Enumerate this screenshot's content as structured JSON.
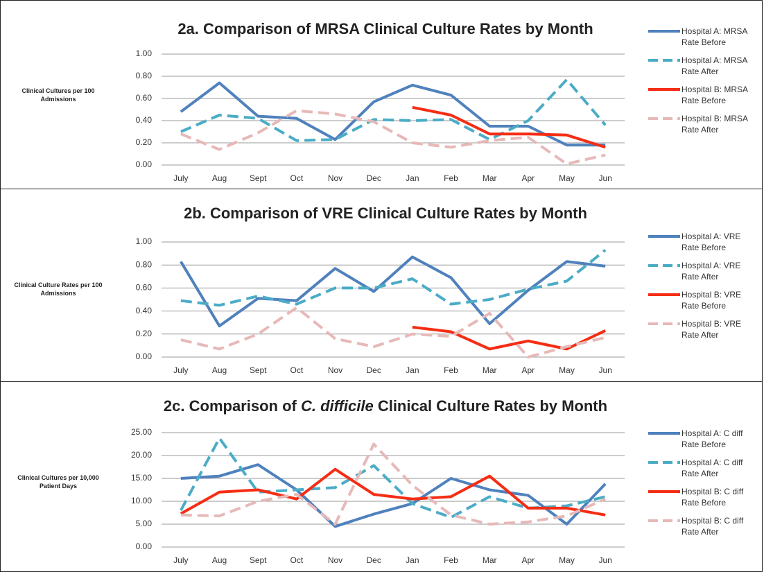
{
  "chart_data": [
    {
      "type": "line",
      "title": [
        {
          "text": "2a. Comparison of MRSA Clinical Culture Rates by Month"
        }
      ],
      "y_label": "Clinical Cultures per 100 Admissions",
      "categories": [
        "July",
        "Aug",
        "Sept",
        "Oct",
        "Nov",
        "Dec",
        "Jan",
        "Feb",
        "Mar",
        "Apr",
        "May",
        "Jun"
      ],
      "ylim": [
        0,
        1
      ],
      "yticks": [
        {
          "value": 0,
          "label": "0.00"
        },
        {
          "value": 0.2,
          "label": "0.20"
        },
        {
          "value": 0.4,
          "label": "0.40"
        },
        {
          "value": 0.6,
          "label": "0.60"
        },
        {
          "value": 0.8,
          "label": "0.80"
        },
        {
          "value": 1,
          "label": "1.00"
        }
      ],
      "grid": true,
      "series": [
        {
          "name": "Hospital A: MRSA Rate Before",
          "color": "#4f81bd",
          "dashed": false,
          "values": [
            0.48,
            0.74,
            0.44,
            0.42,
            0.23,
            0.57,
            0.72,
            0.63,
            0.35,
            0.35,
            0.18,
            0.18
          ]
        },
        {
          "name": "Hospital A: MRSA Rate After",
          "color": "#4bacc6",
          "dashed": true,
          "values": [
            0.3,
            0.45,
            0.42,
            0.22,
            0.23,
            0.41,
            0.4,
            0.41,
            0.23,
            0.4,
            0.77,
            0.36
          ]
        },
        {
          "name": "Hospital B: MRSA Rate Before",
          "color": "#f52d14",
          "dashed": false,
          "values": [
            null,
            null,
            null,
            null,
            null,
            null,
            0.52,
            0.45,
            0.28,
            0.28,
            0.27,
            0.16
          ]
        },
        {
          "name": "Hospital B: MRSA Rate After",
          "color": "#e6b9b8",
          "dashed": true,
          "values": [
            0.28,
            0.14,
            0.29,
            0.49,
            0.46,
            0.39,
            0.2,
            0.16,
            0.22,
            0.25,
            0.01,
            0.09
          ]
        }
      ]
    },
    {
      "type": "line",
      "title": [
        {
          "text": "2b. Comparison of VRE Clinical Culture Rates by Month"
        }
      ],
      "y_label": "Clinical Culture Rates per 100 Admissions",
      "categories": [
        "July",
        "Aug",
        "Sept",
        "Oct",
        "Nov",
        "Dec",
        "Jan",
        "Feb",
        "Mar",
        "Apr",
        "May",
        "Jun"
      ],
      "ylim": [
        0,
        1
      ],
      "yticks": [
        {
          "value": 0,
          "label": "0.00"
        },
        {
          "value": 0.2,
          "label": "0.20"
        },
        {
          "value": 0.4,
          "label": "0.40"
        },
        {
          "value": 0.6,
          "label": "0.60"
        },
        {
          "value": 0.8,
          "label": "0.80"
        },
        {
          "value": 1,
          "label": "1.00"
        }
      ],
      "grid": true,
      "series": [
        {
          "name": "Hospital A: VRE Rate Before",
          "color": "#4f81bd",
          "dashed": false,
          "values": [
            0.83,
            0.27,
            0.51,
            0.49,
            0.77,
            0.57,
            0.87,
            0.69,
            0.29,
            0.58,
            0.83,
            0.79
          ]
        },
        {
          "name": "Hospital A: VRE Rate After",
          "color": "#4bacc6",
          "dashed": true,
          "values": [
            0.49,
            0.45,
            0.53,
            0.46,
            0.6,
            0.6,
            0.68,
            0.46,
            0.5,
            0.59,
            0.66,
            0.93
          ]
        },
        {
          "name": "Hospital B: VRE Rate Before",
          "color": "#f52d14",
          "dashed": false,
          "values": [
            null,
            null,
            null,
            null,
            null,
            null,
            0.26,
            0.22,
            0.07,
            0.14,
            0.07,
            0.23
          ]
        },
        {
          "name": "Hospital B: VRE Rate After",
          "color": "#e6b9b8",
          "dashed": true,
          "values": [
            0.15,
            0.07,
            0.2,
            0.43,
            0.16,
            0.09,
            0.2,
            0.18,
            0.38,
            0.0,
            0.09,
            0.17
          ]
        }
      ]
    },
    {
      "type": "line",
      "title": [
        {
          "text": "2c. Comparison of "
        },
        {
          "text": "C. difficile",
          "italic": true
        },
        {
          "text": " Clinical Culture Rates by Month"
        }
      ],
      "y_label": "Clinical Cultures per 10,000 Patient Days",
      "categories": [
        "July",
        "Aug",
        "Sept",
        "Oct",
        "Nov",
        "Dec",
        "Jan",
        "Feb",
        "Mar",
        "Apr",
        "May",
        "Jun"
      ],
      "ylim": [
        0,
        25
      ],
      "yticks": [
        {
          "value": 0,
          "label": "0.00"
        },
        {
          "value": 5,
          "label": "5.00"
        },
        {
          "value": 10,
          "label": "10.00"
        },
        {
          "value": 15,
          "label": "15.00"
        },
        {
          "value": 20,
          "label": "20.00"
        },
        {
          "value": 25,
          "label": "25.00"
        }
      ],
      "grid": true,
      "series": [
        {
          "name": "Hospital A: C diff Rate Before",
          "color": "#4f81bd",
          "dashed": false,
          "values": [
            15.0,
            15.5,
            18.0,
            12.5,
            4.5,
            7.2,
            9.5,
            15.0,
            12.5,
            11.3,
            5.0,
            13.8
          ]
        },
        {
          "name": "Hospital A: C diff Rate After",
          "color": "#4bacc6",
          "dashed": true,
          "values": [
            8.0,
            23.8,
            12.0,
            12.5,
            13.0,
            17.8,
            9.5,
            6.5,
            11.0,
            8.5,
            9.0,
            11.0
          ]
        },
        {
          "name": "Hospital B: C diff Rate Before",
          "color": "#f52d14",
          "dashed": false,
          "values": [
            7.3,
            12.0,
            12.5,
            10.5,
            17.0,
            11.5,
            10.5,
            11.0,
            15.5,
            8.5,
            8.5,
            7.0
          ]
        },
        {
          "name": "Hospital B: C diff Rate After",
          "color": "#e6b9b8",
          "dashed": true,
          "values": [
            7.0,
            6.8,
            10.0,
            11.5,
            5.0,
            22.5,
            13.5,
            7.0,
            5.0,
            5.5,
            6.8,
            10.5
          ]
        }
      ]
    }
  ]
}
